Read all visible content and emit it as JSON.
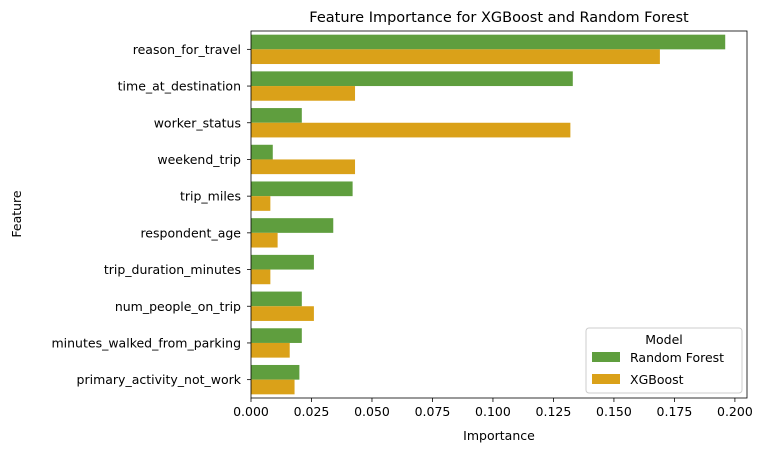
{
  "chart_data": {
    "type": "bar",
    "orientation": "horizontal",
    "title": "Feature Importance for XGBoost and Random Forest",
    "xlabel": "Importance",
    "ylabel": "Feature",
    "xlim": [
      0,
      0.205
    ],
    "xticks": [
      0.0,
      0.025,
      0.05,
      0.075,
      0.1,
      0.125,
      0.15,
      0.175,
      0.2
    ],
    "xtick_labels": [
      "0.000",
      "0.025",
      "0.050",
      "0.075",
      "0.100",
      "0.125",
      "0.150",
      "0.175",
      "0.200"
    ],
    "grid": false,
    "categories": [
      "reason_for_travel",
      "time_at_destination",
      "worker_status",
      "weekend_trip",
      "trip_miles",
      "respondent_age",
      "trip_duration_minutes",
      "num_people_on_trip",
      "minutes_walked_from_parking",
      "primary_activity_not_work"
    ],
    "series": [
      {
        "name": "Random Forest",
        "color": "#5f9e3e",
        "values": [
          0.196,
          0.133,
          0.021,
          0.009,
          0.042,
          0.034,
          0.026,
          0.021,
          0.021,
          0.02
        ]
      },
      {
        "name": "XGBoost",
        "color": "#daa119",
        "values": [
          0.169,
          0.043,
          0.132,
          0.043,
          0.008,
          0.011,
          0.008,
          0.026,
          0.016,
          0.018
        ]
      }
    ],
    "legend": {
      "title": "Model",
      "placement": "lower-right"
    }
  }
}
